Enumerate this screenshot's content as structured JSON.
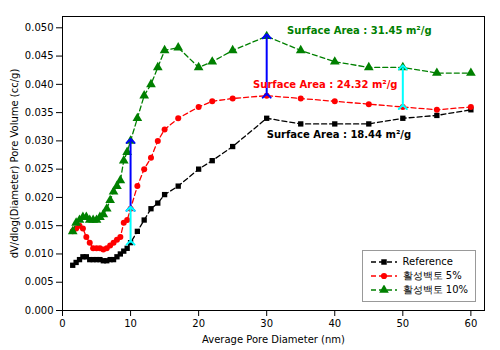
{
  "chart_data": {
    "type": "line",
    "xlabel": "Average Pore Diameter (nm)",
    "ylabel": "dV/dlog(Diameter) Pore Volume (cc/g)",
    "x": [
      1.5,
      2.0,
      2.5,
      3.0,
      3.5,
      4.0,
      4.5,
      5.0,
      5.5,
      6.0,
      6.5,
      7.0,
      7.5,
      8.0,
      8.5,
      9.0,
      9.5,
      10.0,
      11.0,
      12.0,
      13.0,
      14.0,
      15.0,
      17.0,
      20.0,
      22.0,
      25.0,
      30.0,
      35.0,
      40.0,
      45.0,
      50.0,
      55.0,
      60.0
    ],
    "series": [
      {
        "name": "Reference",
        "color": "black",
        "marker": "square",
        "line_style": "dashed",
        "values": [
          0.008,
          0.0085,
          0.009,
          0.0095,
          0.0095,
          0.009,
          0.009,
          0.009,
          0.009,
          0.0088,
          0.0088,
          0.009,
          0.009,
          0.0095,
          0.01,
          0.0105,
          0.011,
          0.012,
          0.014,
          0.016,
          0.018,
          0.019,
          0.0205,
          0.022,
          0.025,
          0.0265,
          0.029,
          0.034,
          0.033,
          0.033,
          0.033,
          0.034,
          0.0345,
          0.0355
        ]
      },
      {
        "name": "활성백토  5%",
        "color": "red",
        "marker": "circle",
        "line_style": "dashed",
        "values": [
          0.014,
          0.0145,
          0.015,
          0.0145,
          0.013,
          0.012,
          0.011,
          0.011,
          0.011,
          0.0108,
          0.011,
          0.0115,
          0.012,
          0.0125,
          0.013,
          0.0155,
          0.016,
          0.018,
          0.022,
          0.025,
          0.027,
          0.03,
          0.032,
          0.034,
          0.036,
          0.037,
          0.0375,
          0.038,
          0.0375,
          0.037,
          0.0365,
          0.036,
          0.0355,
          0.036
        ]
      },
      {
        "name": "활성백토  10%",
        "color": "green",
        "marker": "triangle",
        "line_style": "dashed",
        "values": [
          0.014,
          0.0155,
          0.016,
          0.0165,
          0.0165,
          0.016,
          0.016,
          0.016,
          0.0165,
          0.017,
          0.018,
          0.0195,
          0.021,
          0.022,
          0.023,
          0.0265,
          0.028,
          0.03,
          0.034,
          0.038,
          0.04,
          0.043,
          0.046,
          0.0465,
          0.043,
          0.044,
          0.046,
          0.0485,
          0.046,
          0.044,
          0.043,
          0.043,
          0.042,
          0.042
        ]
      }
    ],
    "xlim": [
      0,
      62
    ],
    "xticks": [
      0,
      10,
      20,
      30,
      40,
      50,
      60
    ],
    "ylim": [
      0,
      0.052
    ],
    "yticks": [
      {
        "value": 0,
        "label": "0.000"
      },
      0.005,
      {
        "value": 0.01,
        "label": "0.010"
      },
      0.015,
      {
        "value": 0.02,
        "label": "0.020"
      },
      0.025,
      {
        "value": 0.03,
        "label": "0.030"
      },
      0.035,
      {
        "value": 0.04,
        "label": "0.040"
      },
      0.045,
      {
        "value": 0.05,
        "label": "0.050"
      }
    ],
    "grid": false,
    "legend": "lower right",
    "arrows": [
      {
        "x": 10,
        "y1": 0.018,
        "y2": 0.03,
        "color": "blue"
      },
      {
        "x": 10,
        "y1": 0.012,
        "y2": 0.018,
        "color": "cyan"
      },
      {
        "x": 30,
        "y1": 0.038,
        "y2": 0.0485,
        "color": "blue"
      },
      {
        "x": 50,
        "y1": 0.036,
        "y2": 0.043,
        "color": "cyan"
      }
    ],
    "annotations": [
      {
        "text": "Surface Area : 31.45 m²/g",
        "x": 33,
        "y": 0.0495,
        "color": "green"
      },
      {
        "text": "Surface Area : 24.32 m²/g",
        "x": 28,
        "y": 0.04,
        "color": "red"
      },
      {
        "text": "Surface Area : 18.44 m²/g",
        "x": 30,
        "y": 0.031,
        "color": "black"
      }
    ]
  }
}
